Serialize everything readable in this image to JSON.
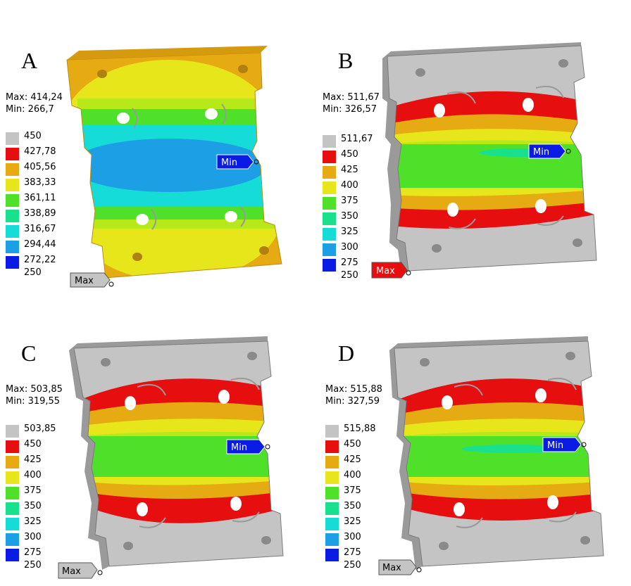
{
  "colors": {
    "blue": "#0a1be6",
    "light_blue": "#1d9fe6",
    "cyan": "#16dcd8",
    "teal_green": "#18e08c",
    "green": "#4fe02a",
    "yellow_green": "#b6e81a",
    "yellow": "#e6e61a",
    "orange": "#e6aa12",
    "red": "#e60e0e",
    "gray": "#c4c4c4",
    "plate_edge": "#8a8a8a"
  },
  "panels": [
    {
      "letter": "A",
      "max_text": "Max: 414,24",
      "min_text": "Min: 266,7",
      "legend": [
        "450",
        "427,78",
        "405,56",
        "383,33",
        "361,11",
        "338,89",
        "316,67",
        "294,44",
        "272,22",
        "250"
      ],
      "min_tag": "Min",
      "max_tag": "Max"
    },
    {
      "letter": "B",
      "max_text": "Max: 511,67",
      "min_text": "Min: 326,57",
      "legend": [
        "511,67",
        "450",
        "425",
        "400",
        "375",
        "350",
        "325",
        "300",
        "275",
        "250"
      ],
      "min_tag": "Min",
      "max_tag": "Max"
    },
    {
      "letter": "C",
      "max_text": "Max: 503,85",
      "min_text": "Min: 319,55",
      "legend": [
        "503,85",
        "450",
        "425",
        "400",
        "375",
        "350",
        "325",
        "300",
        "275",
        "250"
      ],
      "min_tag": "Min",
      "max_tag": "Max"
    },
    {
      "letter": "D",
      "max_text": "Max: 515,88",
      "min_text": "Min: 327,59",
      "legend": [
        "515,88",
        "450",
        "425",
        "400",
        "375",
        "350",
        "325",
        "300",
        "275",
        "250"
      ],
      "min_tag": "Min",
      "max_tag": "Max"
    }
  ]
}
